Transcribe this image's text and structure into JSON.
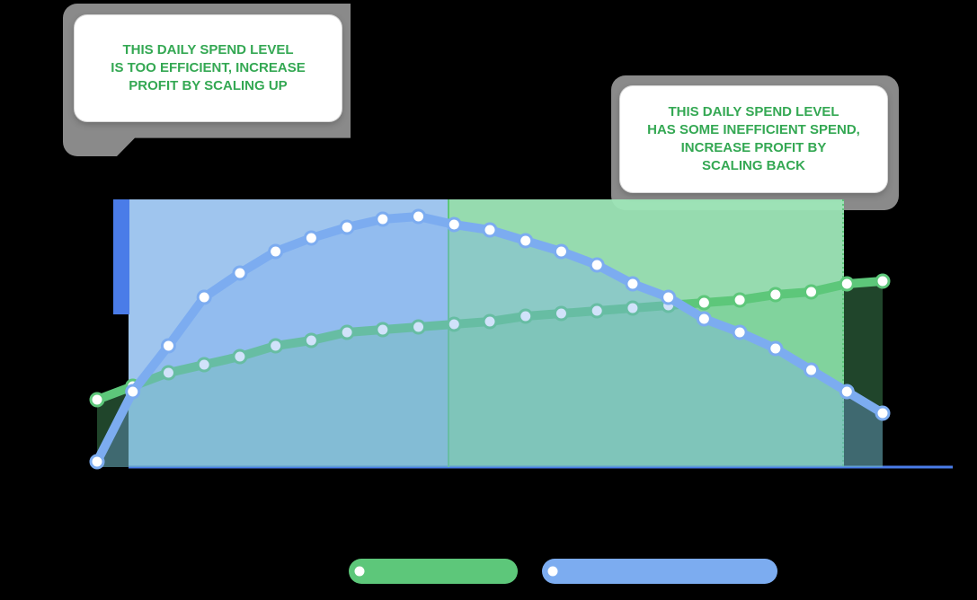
{
  "callouts": {
    "left": "THIS DAILY SPEND LEVEL\nIS TOO EFFICIENT, INCREASE\nPROFIT BY SCALING UP",
    "right": "THIS DAILY SPEND LEVEL\nHAS SOME INEFFICIENT SPEND,\nINCREASE PROFIT BY\nSCALING BACK"
  },
  "colors": {
    "background": "#000000",
    "green_series": "#5dc77a",
    "green_fill": "#9ee7b8",
    "blue_series": "#7cacf0",
    "blue_fill": "#a8d0fb",
    "accent_blue": "#4a7ce8",
    "callout_text": "#34a853",
    "callout_frame": "#8a8a8a"
  },
  "chart_data": {
    "type": "line",
    "title": "",
    "xlabel": "",
    "ylabel": "",
    "grid": false,
    "legend": "bottom-center",
    "x": [
      1,
      2,
      3,
      4,
      5,
      6,
      7,
      8,
      9,
      10,
      11,
      12,
      13,
      14,
      15,
      16,
      17,
      18,
      19,
      20,
      21,
      22,
      23
    ],
    "xlim": [
      1,
      23
    ],
    "ylim": [
      0,
      100
    ],
    "series": [
      {
        "color": "#5dc77a",
        "values": [
          25,
          30,
          35,
          38,
          41,
          45,
          47,
          50,
          51,
          52,
          53,
          54,
          56,
          57,
          58,
          59,
          60,
          61,
          62,
          64,
          65,
          68,
          69
        ]
      },
      {
        "color": "#7cacf0",
        "values": [
          2,
          28,
          45,
          63,
          72,
          80,
          85,
          89,
          92,
          93,
          90,
          88,
          84,
          80,
          75,
          68,
          63,
          55,
          50,
          44,
          36,
          28,
          20
        ]
      }
    ],
    "annotations": [
      {
        "text": "callouts.left",
        "at_x": 2
      },
      {
        "text": "callouts.right",
        "at_x": 21
      }
    ]
  }
}
